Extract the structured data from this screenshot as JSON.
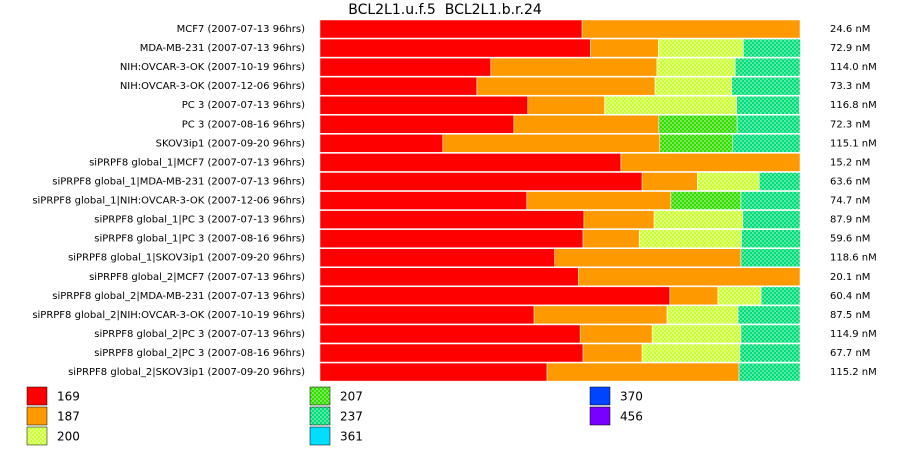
{
  "chart_data": {
    "type": "stacked-bar-horizontal",
    "title": "BCL2L1.u.f.5  BCL2L1.b.r.24",
    "categories": [
      "MCF7 (2007-07-13 96hrs)",
      "MDA-MB-231 (2007-07-13 96hrs)",
      "NIH:OVCAR-3-OK (2007-10-19 96hrs)",
      "NIH:OVCAR-3-OK (2007-12-06 96hrs)",
      "PC 3 (2007-07-13 96hrs)",
      "PC 3 (2007-08-16 96hrs)",
      "SKOV3ip1 (2007-09-20 96hrs)",
      "siPRPF8 global_1|MCF7 (2007-07-13 96hrs)",
      "siPRPF8 global_1|MDA-MB-231 (2007-07-13 96hrs)",
      "siPRPF8 global_1|NIH:OVCAR-3-OK (2007-12-06 96hrs)",
      "siPRPF8 global_1|PC 3 (2007-07-13 96hrs)",
      "siPRPF8 global_1|PC 3 (2007-08-16 96hrs)",
      "siPRPF8 global_1|SKOV3ip1 (2007-09-20 96hrs)",
      "siPRPF8 global_2|MCF7 (2007-07-13 96hrs)",
      "siPRPF8 global_2|MDA-MB-231 (2007-07-13 96hrs)",
      "siPRPF8 global_2|NIH:OVCAR-3-OK (2007-10-19 96hrs)",
      "siPRPF8 global_2|PC 3 (2007-07-13 96hrs)",
      "siPRPF8 global_2|PC 3 (2007-08-16 96hrs)",
      "siPRPF8 global_2|SKOV3ip1 (2007-09-20 96hrs)"
    ],
    "annotations": [
      "24.6 nM",
      "72.9 nM",
      "114.0 nM",
      "73.3 nM",
      "116.8 nM",
      "72.3 nM",
      "115.1 nM",
      "15.2 nM",
      "63.6 nM",
      "74.7 nM",
      "87.9 nM",
      "59.6 nM",
      "118.6 nM",
      "20.1 nM",
      "60.4 nM",
      "87.5 nM",
      "114.9 nM",
      "67.7 nM",
      "115.2 nM"
    ],
    "xlim": [
      0,
      100
    ],
    "series": [
      {
        "name": "169",
        "color": "#ff0000",
        "pattern": false,
        "values": [
          54.6,
          56.3,
          35.6,
          32.7,
          43.3,
          40.4,
          25.6,
          62.7,
          67.1,
          43.1,
          55.0,
          54.8,
          48.9,
          53.8,
          72.9,
          44.6,
          54.2,
          54.8,
          47.3
        ]
      },
      {
        "name": "187",
        "color": "#ff9900",
        "pattern": false,
        "values": [
          45.4,
          14.2,
          34.6,
          37.1,
          16.0,
          30.2,
          45.2,
          37.3,
          11.5,
          30.0,
          14.6,
          11.7,
          38.8,
          46.2,
          10.0,
          27.7,
          15.0,
          12.3,
          40.0
        ]
      },
      {
        "name": "200",
        "color": "#ccff33",
        "pattern": true,
        "values": [
          null,
          17.7,
          16.3,
          16.0,
          27.5,
          null,
          null,
          null,
          12.9,
          null,
          18.5,
          21.3,
          null,
          null,
          9.0,
          14.8,
          18.5,
          20.4,
          null
        ]
      },
      {
        "name": "207",
        "color": "#33dd00",
        "pattern": true,
        "values": [
          null,
          null,
          null,
          null,
          null,
          16.3,
          15.2,
          null,
          null,
          14.6,
          null,
          null,
          null,
          null,
          null,
          null,
          null,
          null,
          null
        ]
      },
      {
        "name": "237",
        "color": "#00dd77",
        "pattern": true,
        "values": [
          null,
          11.9,
          13.5,
          14.2,
          13.1,
          13.1,
          14.0,
          null,
          8.5,
          12.3,
          11.9,
          12.3,
          12.3,
          null,
          8.1,
          12.9,
          12.3,
          12.5,
          12.7
        ]
      },
      {
        "name": "361",
        "color": "#00ddff",
        "pattern": false,
        "values": [
          null,
          null,
          null,
          null,
          null,
          null,
          null,
          null,
          null,
          null,
          null,
          null,
          null,
          null,
          null,
          null,
          null,
          null,
          null
        ]
      },
      {
        "name": "370",
        "color": "#0044ff",
        "pattern": false,
        "values": [
          null,
          null,
          null,
          null,
          null,
          null,
          null,
          null,
          null,
          null,
          null,
          null,
          null,
          null,
          null,
          null,
          null,
          null,
          null
        ]
      },
      {
        "name": "456",
        "color": "#7700ff",
        "pattern": false,
        "values": [
          null,
          null,
          null,
          null,
          null,
          null,
          null,
          null,
          null,
          null,
          null,
          null,
          null,
          null,
          null,
          null,
          null,
          null,
          null
        ]
      }
    ]
  }
}
